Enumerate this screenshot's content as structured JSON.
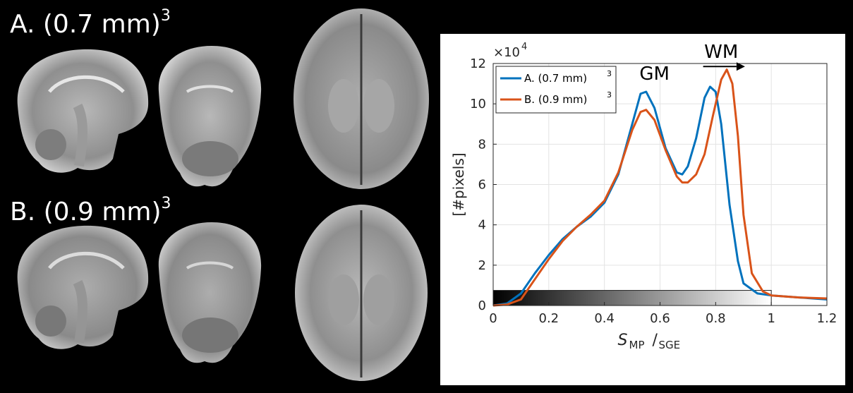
{
  "figure": {
    "label_a": "A. (0.7 mm)",
    "label_a_exp": "3",
    "label_b": "B. (0.9 mm)",
    "label_b_exp": "3"
  },
  "chart_data": {
    "type": "line",
    "xlabel_main": "S",
    "xlabel_sub1": "MP",
    "xlabel_sub2": "SGE",
    "ylabel": "[#pixels]",
    "y_multiplier_base": "×10",
    "y_multiplier_exp": "4",
    "xlim": [
      0,
      1.2
    ],
    "ylim": [
      0,
      12
    ],
    "x_ticks": [
      "0",
      "0.2",
      "0.4",
      "0.6",
      "0.8",
      "1",
      "1.2"
    ],
    "y_ticks": [
      "0",
      "2",
      "4",
      "6",
      "8",
      "10",
      "12"
    ],
    "grid": true,
    "legend_position": "top-left",
    "annotations": {
      "gm": "GM",
      "wm": "WM"
    },
    "series": [
      {
        "name": "A. (0.7 mm)",
        "name_exp": "3",
        "color": "#0072BD",
        "points": [
          [
            0.0,
            0.0
          ],
          [
            0.05,
            0.1
          ],
          [
            0.1,
            0.6
          ],
          [
            0.15,
            1.6
          ],
          [
            0.2,
            2.5
          ],
          [
            0.25,
            3.3
          ],
          [
            0.3,
            3.9
          ],
          [
            0.35,
            4.4
          ],
          [
            0.4,
            5.1
          ],
          [
            0.45,
            6.5
          ],
          [
            0.5,
            9.0
          ],
          [
            0.53,
            10.5
          ],
          [
            0.55,
            10.6
          ],
          [
            0.58,
            9.8
          ],
          [
            0.62,
            7.8
          ],
          [
            0.66,
            6.6
          ],
          [
            0.68,
            6.5
          ],
          [
            0.7,
            6.9
          ],
          [
            0.73,
            8.3
          ],
          [
            0.76,
            10.3
          ],
          [
            0.78,
            10.85
          ],
          [
            0.8,
            10.6
          ],
          [
            0.82,
            9.0
          ],
          [
            0.85,
            5.0
          ],
          [
            0.88,
            2.2
          ],
          [
            0.9,
            1.1
          ],
          [
            0.95,
            0.6
          ],
          [
            1.0,
            0.5
          ],
          [
            1.1,
            0.4
          ],
          [
            1.2,
            0.3
          ]
        ]
      },
      {
        "name": "B. (0.9 mm)",
        "name_exp": "3",
        "color": "#D95319",
        "points": [
          [
            0.0,
            0.0
          ],
          [
            0.05,
            0.05
          ],
          [
            0.1,
            0.3
          ],
          [
            0.15,
            1.3
          ],
          [
            0.2,
            2.3
          ],
          [
            0.25,
            3.2
          ],
          [
            0.3,
            3.9
          ],
          [
            0.35,
            4.5
          ],
          [
            0.4,
            5.2
          ],
          [
            0.45,
            6.6
          ],
          [
            0.5,
            8.7
          ],
          [
            0.53,
            9.6
          ],
          [
            0.55,
            9.7
          ],
          [
            0.58,
            9.2
          ],
          [
            0.62,
            7.7
          ],
          [
            0.66,
            6.4
          ],
          [
            0.68,
            6.1
          ],
          [
            0.7,
            6.1
          ],
          [
            0.73,
            6.5
          ],
          [
            0.76,
            7.5
          ],
          [
            0.79,
            9.4
          ],
          [
            0.82,
            11.2
          ],
          [
            0.84,
            11.7
          ],
          [
            0.86,
            11.0
          ],
          [
            0.88,
            8.4
          ],
          [
            0.9,
            4.5
          ],
          [
            0.93,
            1.6
          ],
          [
            0.97,
            0.7
          ],
          [
            1.0,
            0.5
          ],
          [
            1.1,
            0.4
          ],
          [
            1.2,
            0.35
          ]
        ]
      }
    ]
  }
}
